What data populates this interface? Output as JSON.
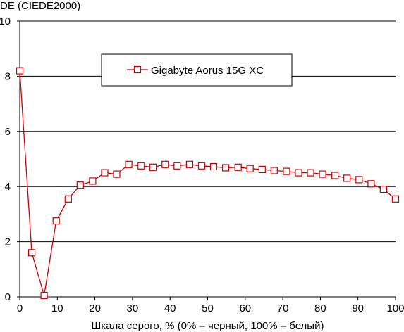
{
  "chart_data": {
    "type": "line",
    "title": "",
    "ylabel": "DE (CIEDE2000)",
    "xlabel": "Шкала серого, % (0% – черный, 100% – белый)",
    "xlim": [
      0,
      100
    ],
    "ylim": [
      0,
      10
    ],
    "xticks": [
      0,
      10,
      20,
      30,
      40,
      50,
      60,
      70,
      80,
      90,
      100
    ],
    "yticks": [
      0,
      2,
      4,
      6,
      8,
      10
    ],
    "grid": "horizontal",
    "legend_position": "top-center",
    "series": [
      {
        "name": "Gigabyte Aorus 15G XC",
        "color": "#cc0000",
        "marker": "square",
        "x": [
          0,
          3.2,
          6.5,
          9.7,
          12.9,
          16.1,
          19.4,
          22.6,
          25.8,
          29.0,
          32.3,
          35.5,
          38.7,
          41.9,
          45.2,
          48.4,
          51.6,
          54.8,
          58.1,
          61.3,
          64.5,
          67.7,
          71.0,
          74.2,
          77.4,
          80.6,
          83.9,
          87.1,
          90.3,
          93.5,
          96.8,
          100
        ],
        "values": [
          8.2,
          1.6,
          0.05,
          2.75,
          3.55,
          4.05,
          4.2,
          4.5,
          4.45,
          4.8,
          4.75,
          4.7,
          4.8,
          4.75,
          4.8,
          4.75,
          4.72,
          4.68,
          4.7,
          4.65,
          4.62,
          4.58,
          4.55,
          4.5,
          4.5,
          4.45,
          4.4,
          4.3,
          4.25,
          4.1,
          3.9,
          3.55
        ]
      }
    ]
  }
}
